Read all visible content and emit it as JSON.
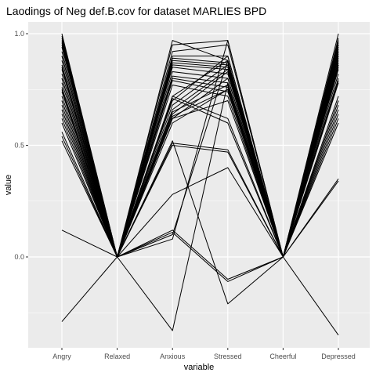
{
  "chart_data": {
    "type": "line",
    "title": "Laodings of Neg def.B.cov for dataset MARLIES BPD",
    "xlabel": "variable",
    "ylabel": "value",
    "categories": [
      "Angry",
      "Relaxed",
      "Anxious",
      "Stressed",
      "Cheerful",
      "Depressed"
    ],
    "ylim": [
      -0.4,
      1.0
    ],
    "yticks": [
      "0.0",
      "0.5",
      "1.0"
    ],
    "grid": true,
    "background": "#ebebeb",
    "gridline_color": "#ffffff",
    "line_color": "#000000",
    "series": [
      {
        "values": [
          1.0,
          0,
          0.97,
          0.88,
          0,
          1.0
        ]
      },
      {
        "values": [
          0.99,
          0,
          0.95,
          0.97,
          0,
          0.98
        ]
      },
      {
        "values": [
          0.98,
          0,
          0.92,
          0.95,
          0,
          0.96
        ]
      },
      {
        "values": [
          0.97,
          0,
          0.9,
          0.9,
          0,
          0.95
        ]
      },
      {
        "values": [
          0.96,
          0,
          0.89,
          0.87,
          0,
          0.94
        ]
      },
      {
        "values": [
          0.95,
          0,
          0.88,
          0.86,
          0,
          0.93
        ]
      },
      {
        "values": [
          0.94,
          0,
          0.87,
          0.85,
          0,
          0.92
        ]
      },
      {
        "values": [
          0.92,
          0,
          0.86,
          0.84,
          0,
          0.91
        ]
      },
      {
        "values": [
          0.9,
          0,
          0.85,
          0.82,
          0,
          0.9
        ]
      },
      {
        "values": [
          0.88,
          0,
          0.83,
          0.8,
          0,
          0.89
        ]
      },
      {
        "values": [
          0.86,
          0,
          0.81,
          0.78,
          0,
          0.88
        ]
      },
      {
        "values": [
          0.84,
          0,
          0.8,
          0.76,
          0,
          0.87
        ]
      },
      {
        "values": [
          0.82,
          0,
          0.79,
          0.74,
          0,
          0.86
        ]
      },
      {
        "values": [
          0.8,
          0,
          0.77,
          0.72,
          0,
          0.85
        ]
      },
      {
        "values": [
          0.78,
          0,
          0.72,
          0.88,
          0,
          0.84
        ]
      },
      {
        "values": [
          0.76,
          0,
          0.7,
          0.9,
          0,
          0.82
        ]
      },
      {
        "values": [
          0.74,
          0,
          0.68,
          0.86,
          0,
          0.8
        ]
      },
      {
        "values": [
          0.72,
          0,
          0.66,
          0.84,
          0,
          0.79
        ]
      },
      {
        "values": [
          0.7,
          0,
          0.64,
          0.83,
          0,
          0.78
        ]
      },
      {
        "values": [
          0.68,
          0,
          0.62,
          0.8,
          0,
          0.7
        ]
      },
      {
        "values": [
          0.66,
          0,
          0.6,
          0.75,
          0,
          0.68
        ]
      },
      {
        "values": [
          0.64,
          0,
          0.51,
          0.48,
          0,
          0.66
        ]
      },
      {
        "values": [
          0.62,
          0,
          0.5,
          0.47,
          0,
          0.64
        ]
      },
      {
        "values": [
          0.6,
          0,
          0.72,
          0.62,
          0,
          0.62
        ]
      },
      {
        "values": [
          0.56,
          0,
          0.71,
          0.6,
          0,
          0.6
        ]
      },
      {
        "values": [
          0.54,
          0,
          0.62,
          0.7,
          0,
          0.35
        ]
      },
      {
        "values": [
          0.52,
          0,
          0.11,
          -0.11,
          0,
          0.34
        ]
      },
      {
        "values": [
          0.12,
          0,
          0.12,
          -0.1,
          0,
          0.9
        ]
      },
      {
        "values": [
          -0.29,
          0,
          0.08,
          0.97,
          0,
          0.97
        ]
      },
      {
        "values": [
          0.8,
          0,
          -0.33,
          0.78,
          0,
          0.92
        ]
      },
      {
        "values": [
          0.75,
          0,
          0.28,
          0.4,
          0,
          0.86
        ]
      },
      {
        "values": [
          0.9,
          0,
          0.52,
          -0.21,
          0,
          0.95
        ]
      },
      {
        "values": [
          0.85,
          0,
          0.1,
          0.88,
          0,
          -0.35
        ]
      },
      {
        "values": [
          0.7,
          0,
          0.63,
          0.75,
          0,
          0.72
        ]
      },
      {
        "values": [
          0.66,
          0,
          0.65,
          0.77,
          0,
          0.7
        ]
      }
    ]
  }
}
